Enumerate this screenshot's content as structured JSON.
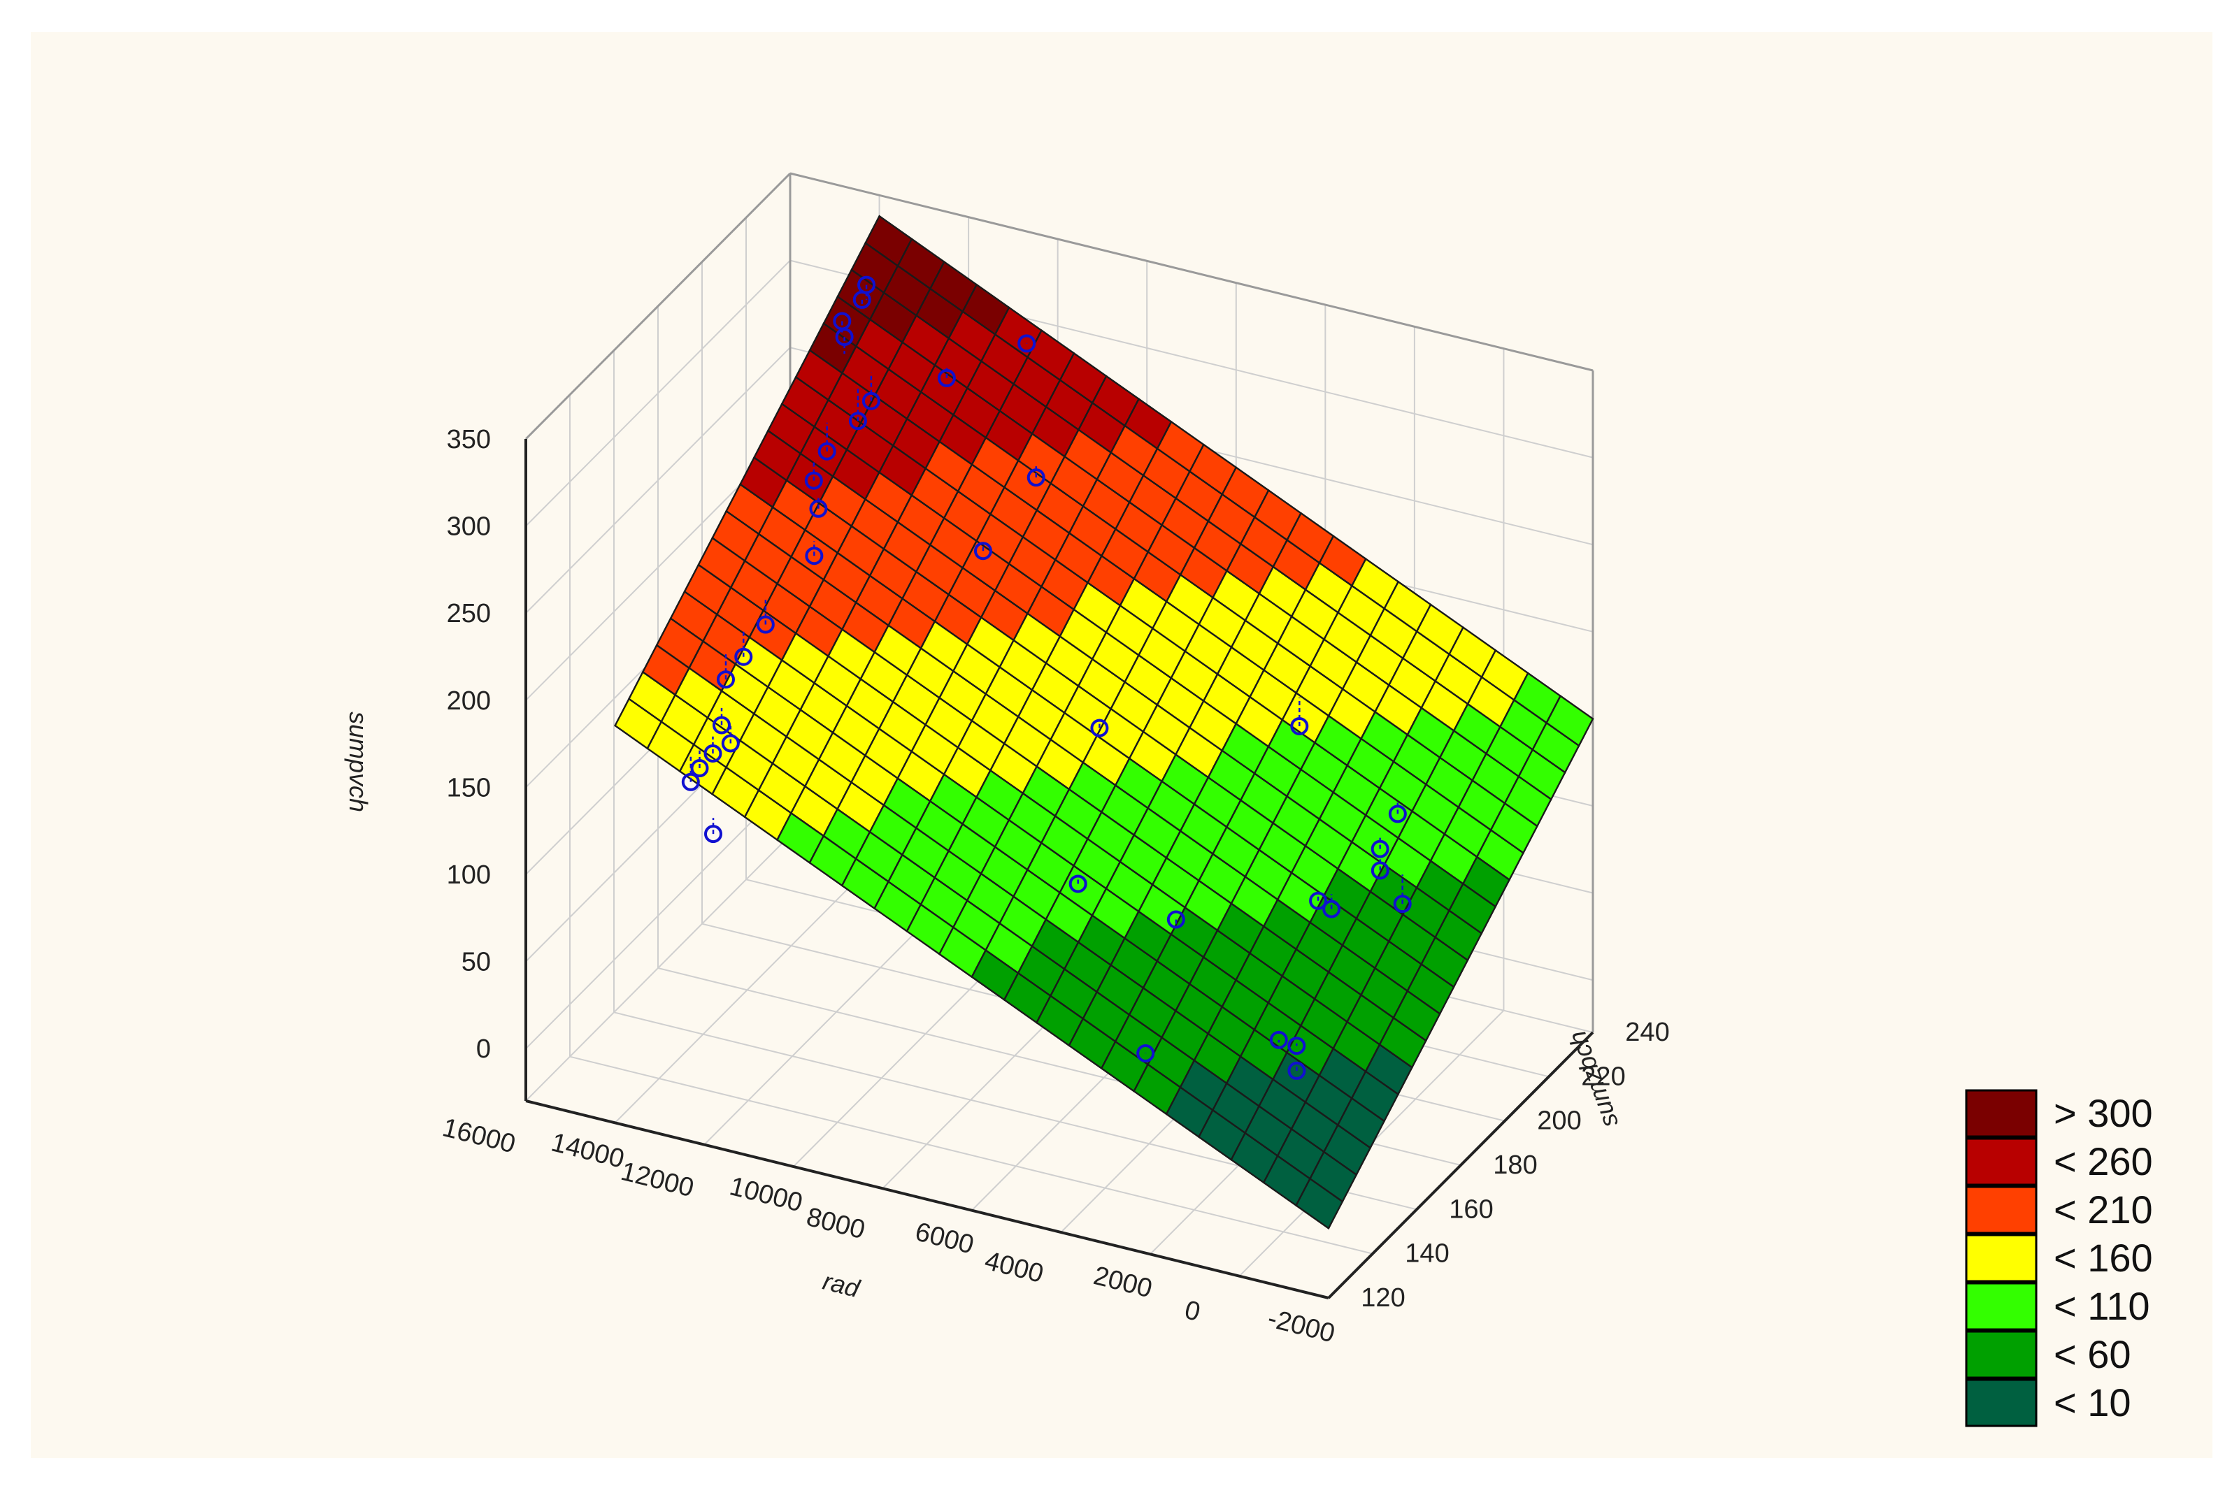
{
  "chart_data": {
    "type": "surface3d",
    "title": "",
    "xlabel": "rad",
    "ylabel": "sumzbch",
    "zlabel": "sumpvch",
    "x_ticks": [
      "16000",
      "14000",
      "12000",
      "10000",
      "8000",
      "6000",
      "4000",
      "2000",
      "0",
      "-2000"
    ],
    "y_ticks": [
      "120",
      "140",
      "160",
      "180",
      "200",
      "220",
      "240"
    ],
    "z_ticks": [
      "350",
      "300",
      "250",
      "200",
      "150",
      "100",
      "50",
      "0"
    ],
    "xlim": [
      -2000,
      16000
    ],
    "ylim": [
      120,
      240
    ],
    "zlim": [
      -30,
      350
    ],
    "grid": true,
    "surface": {
      "model": "z = a + b*x + c*y",
      "corner_values": [
        {
          "x": 14000,
          "y": 120,
          "z": 198
        },
        {
          "x": 14000,
          "y": 240,
          "z": 338
        },
        {
          "x": -2000,
          "y": 240,
          "z": 150
        },
        {
          "x": -2000,
          "y": 120,
          "z": 10
        }
      ]
    },
    "legend": {
      "position": "bottom-right",
      "items": [
        {
          "label": "> 300",
          "color": "#7a0000"
        },
        {
          "label": "< 260",
          "color": "#b80000"
        },
        {
          "label": "< 210",
          "color": "#ff4000"
        },
        {
          "label": "< 160",
          "color": "#ffff00"
        },
        {
          "label": "< 110",
          "color": "#33ff00"
        },
        {
          "label": "< 60",
          "color": "#00a000"
        },
        {
          "label": "< 10",
          "color": "#006040"
        }
      ]
    },
    "points": [
      {
        "x": 13500,
        "y": 224,
        "z": 322
      },
      {
        "x": 13500,
        "y": 222,
        "z": 316
      },
      {
        "x": 13600,
        "y": 215,
        "z": 312
      },
      {
        "x": 13400,
        "y": 212,
        "z": 308
      },
      {
        "x": 10500,
        "y": 236,
        "z": 292
      },
      {
        "x": 11600,
        "y": 222,
        "z": 283
      },
      {
        "x": 12800,
        "y": 212,
        "z": 275
      },
      {
        "x": 12900,
        "y": 208,
        "z": 268
      },
      {
        "x": 13100,
        "y": 198,
        "z": 262
      },
      {
        "x": 13000,
        "y": 190,
        "z": 256
      },
      {
        "x": 12600,
        "y": 184,
        "z": 250
      },
      {
        "x": 9300,
        "y": 216,
        "z": 248
      },
      {
        "x": 12300,
        "y": 176,
        "z": 235
      },
      {
        "x": 9500,
        "y": 196,
        "z": 230
      },
      {
        "x": 12600,
        "y": 160,
        "z": 214
      },
      {
        "x": 12700,
        "y": 152,
        "z": 205
      },
      {
        "x": 12800,
        "y": 146,
        "z": 199
      },
      {
        "x": 12400,
        "y": 136,
        "z": 188
      },
      {
        "x": 12100,
        "y": 134,
        "z": 182
      },
      {
        "x": 12300,
        "y": 130,
        "z": 180
      },
      {
        "x": 12400,
        "y": 126,
        "z": 176
      },
      {
        "x": 12500,
        "y": 124,
        "z": 170
      },
      {
        "x": 11600,
        "y": 116,
        "z": 156
      },
      {
        "x": 6100,
        "y": 180,
        "z": 170
      },
      {
        "x": 3000,
        "y": 208,
        "z": 155
      },
      {
        "x": 5100,
        "y": 150,
        "z": 125
      },
      {
        "x": 3100,
        "y": 154,
        "z": 112
      },
      {
        "x": 500,
        "y": 202,
        "z": 128
      },
      {
        "x": 500,
        "y": 194,
        "z": 118
      },
      {
        "x": 300,
        "y": 190,
        "z": 112
      },
      {
        "x": 1000,
        "y": 176,
        "z": 108
      },
      {
        "x": 800,
        "y": 178,
        "z": 102
      },
      {
        "x": -200,
        "y": 190,
        "z": 96
      },
      {
        "x": 2500,
        "y": 128,
        "z": 72
      },
      {
        "x": 400,
        "y": 146,
        "z": 70
      },
      {
        "x": 100,
        "y": 148,
        "z": 66
      },
      {
        "x": -100,
        "y": 144,
        "z": 58
      }
    ]
  }
}
